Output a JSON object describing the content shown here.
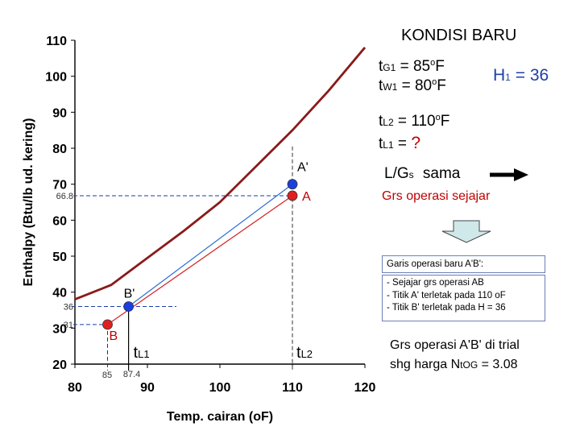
{
  "title": "KONDISI BARU",
  "right_panel": {
    "tG1": {
      "sym": "t",
      "sub": "G1",
      "eq": "=",
      "value": "85",
      "unit_sup": "o",
      "unit": "F"
    },
    "tW1": {
      "sym": "t",
      "sub": "W1",
      "eq": "=",
      "value": "80",
      "unit_sup": "o",
      "unit": "F"
    },
    "H1": {
      "sym": "H",
      "sub": "1",
      "eq": "=",
      "value": "36"
    },
    "tL2": {
      "sym": "t",
      "sub": "L2",
      "eq": "=",
      "value": "110",
      "unit_sup": "o",
      "unit": "F"
    },
    "tL1": {
      "sym": "t",
      "sub": "L1",
      "eq": "=",
      "value": "?"
    },
    "ratio": {
      "text": "L/G",
      "sub": "s",
      "word": "sama"
    },
    "parallel": "Grs operasi sejajar",
    "box_title": "Garis operasi baru A'B':",
    "box_lines": [
      "- Sejajar grs operasi AB",
      "- Titik A' terletak pada 110 oF",
      "- Titik B' terletak pada H = 36"
    ],
    "conclusion_line1": "Grs operasi A'B' di trial",
    "conclusion_line2_pre": "shg harga N",
    "conclusion_line2_sub": "tOG",
    "conclusion_line2_post": " = 3.08"
  },
  "chart_data": {
    "type": "line",
    "xlabel": "Temp. cairan (oF)",
    "ylabel": "Enthalpy (Btu/lb ud. kering)",
    "xlim": [
      80,
      120
    ],
    "ylim": [
      20,
      110
    ],
    "x_ticks": [
      80,
      90,
      100,
      110,
      120
    ],
    "y_ticks": [
      20,
      30,
      40,
      50,
      60,
      70,
      80,
      90,
      100,
      110
    ],
    "x_tick_labels": [
      "80",
      "90",
      "100",
      "110",
      "120"
    ],
    "y_tick_labels": [
      "20",
      "30",
      "40",
      "50",
      "60",
      "70",
      "80",
      "90",
      "100",
      "110"
    ],
    "grid": false,
    "series": [
      {
        "color": "#8b1a1a",
        "x": [
          80,
          85,
          89,
          95,
          100,
          105,
          110,
          115,
          120
        ],
        "y": [
          38,
          42,
          48,
          57,
          65,
          75,
          85,
          96,
          108
        ]
      },
      {
        "color": "#d62020",
        "x": [
          84.5,
          110
        ],
        "y": [
          31,
          66.8
        ]
      },
      {
        "color": "#2a6fd6",
        "x": [
          87.4,
          110
        ],
        "y": [
          36,
          70
        ]
      }
    ],
    "points": [
      {
        "label": "A",
        "x": 110,
        "y": 66.8,
        "color": "#e02020"
      },
      {
        "label": "A'",
        "x": 110,
        "y": 70,
        "color": "#1a3fe0"
      },
      {
        "label": "B",
        "x": 84.5,
        "y": 31,
        "color": "#e02020"
      },
      {
        "label": "B'",
        "x": 87.4,
        "y": 36,
        "color": "#1a3fe0"
      }
    ],
    "annotations": {
      "y_marks": [
        {
          "value": 66.8,
          "label": "66.8"
        },
        {
          "value": 36,
          "label": "36"
        },
        {
          "value": 31,
          "label": "31"
        }
      ],
      "x_marks": [
        {
          "value": 85,
          "label": "85"
        },
        {
          "value": 87.4,
          "label": "87.4"
        }
      ],
      "tL1": {
        "sym": "t",
        "sub": "L1"
      },
      "tL2": {
        "sym": "t",
        "sub": "L2"
      }
    }
  }
}
